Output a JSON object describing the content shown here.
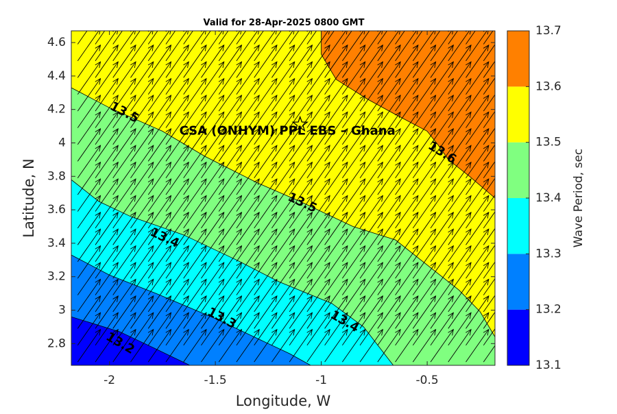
{
  "chart_data": {
    "type": "contour",
    "title": "Valid for 28-Apr-2025 0800 GMT",
    "xlabel": "Longitude, W",
    "ylabel": "Latitude, N",
    "xlim": [
      -2.18,
      -0.18
    ],
    "ylim": [
      2.67,
      4.67
    ],
    "xticks": [
      -2,
      -1.5,
      -1,
      -0.5
    ],
    "xtick_labels": [
      "-2",
      "-1.5",
      "-1",
      "-0.5"
    ],
    "yticks": [
      2.8,
      3,
      3.2,
      3.4,
      3.6,
      3.8,
      4,
      4.2,
      4.4,
      4.6
    ],
    "ytick_labels": [
      "2.8",
      "3",
      "3.2",
      "3.4",
      "3.6",
      "3.8",
      "4",
      "4.2",
      "4.4",
      "4.6"
    ],
    "colorbar": {
      "label": "Wave Period, sec",
      "levels": [
        13.1,
        13.2,
        13.3,
        13.4,
        13.5,
        13.6,
        13.7
      ],
      "level_labels": [
        "13.1",
        "13.2",
        "13.3",
        "13.4",
        "13.5",
        "13.6",
        "13.7"
      ],
      "colors": [
        "#0000ff",
        "#0080ff",
        "#00ffff",
        "#80ff80",
        "#ffff00",
        "#ff8000"
      ]
    },
    "contours": [
      {
        "level": 13.2,
        "points": [
          [
            -2.18,
            2.96
          ],
          [
            -1.95,
            2.87
          ],
          [
            -1.8,
            2.78
          ],
          [
            -1.62,
            2.67
          ]
        ]
      },
      {
        "level": 13.3,
        "points": [
          [
            -2.18,
            3.33
          ],
          [
            -2.0,
            3.21
          ],
          [
            -1.78,
            3.1
          ],
          [
            -1.5,
            2.95
          ],
          [
            -1.3,
            2.83
          ],
          [
            -1.15,
            2.74
          ],
          [
            -1.05,
            2.67
          ]
        ]
      },
      {
        "level": 13.4,
        "points": [
          [
            -2.18,
            3.78
          ],
          [
            -2.05,
            3.65
          ],
          [
            -1.9,
            3.56
          ],
          [
            -1.65,
            3.45
          ],
          [
            -1.4,
            3.3
          ],
          [
            -1.2,
            3.17
          ],
          [
            -0.95,
            3.04
          ],
          [
            -0.8,
            2.9
          ],
          [
            -0.66,
            2.67
          ]
        ]
      },
      {
        "level": 13.5,
        "points": [
          [
            -2.18,
            4.33
          ],
          [
            -2.0,
            4.21
          ],
          [
            -1.75,
            4.07
          ],
          [
            -1.55,
            3.92
          ],
          [
            -1.3,
            3.76
          ],
          [
            -1.1,
            3.65
          ],
          [
            -0.85,
            3.5
          ],
          [
            -0.65,
            3.42
          ],
          [
            -0.5,
            3.27
          ],
          [
            -0.35,
            3.12
          ],
          [
            -0.25,
            2.99
          ],
          [
            -0.18,
            2.84
          ]
        ]
      },
      {
        "level": 13.6,
        "points": [
          [
            -1.0,
            4.67
          ],
          [
            -1.0,
            4.53
          ],
          [
            -0.93,
            4.38
          ],
          [
            -0.78,
            4.26
          ],
          [
            -0.65,
            4.17
          ],
          [
            -0.5,
            4.07
          ],
          [
            -0.45,
            3.99
          ],
          [
            -0.4,
            3.9
          ],
          [
            -0.3,
            3.8
          ],
          [
            -0.18,
            3.67
          ]
        ]
      }
    ],
    "contour_labels": [
      {
        "text": "13.2",
        "x": -1.95,
        "y": 2.8,
        "angle": 30
      },
      {
        "text": "13.3",
        "x": -1.47,
        "y": 2.95,
        "angle": 28
      },
      {
        "text": "13.4",
        "x": -1.74,
        "y": 3.43,
        "angle": 25
      },
      {
        "text": "13.4",
        "x": -0.89,
        "y": 2.93,
        "angle": 30
      },
      {
        "text": "13.5",
        "x": -1.93,
        "y": 4.18,
        "angle": 28
      },
      {
        "text": "13.5",
        "x": -1.09,
        "y": 3.64,
        "angle": 25
      },
      {
        "text": "13.6",
        "x": -0.43,
        "y": 3.94,
        "angle": 32
      }
    ],
    "marker": {
      "label": "CSA (ONHYM) PPL EBS  – Ghana",
      "x": -1.1,
      "y": 4.11,
      "label_x": -1.67,
      "label_y": 4.05,
      "symbol": "star"
    },
    "vectors": {
      "lon_min": -2.15,
      "lon_step": 0.0833,
      "lat_min": 2.69,
      "lat_step": 0.1,
      "cols": 24,
      "rows": 20,
      "direction_deg": 35
    }
  }
}
